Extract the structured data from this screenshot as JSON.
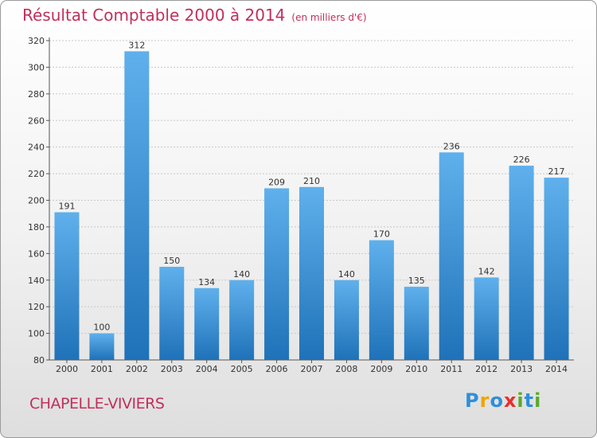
{
  "title": "Résultat Comptable 2000 à 2014",
  "subtitle": "(en milliers d'€)",
  "place": "CHAPELLE-VIVIERS",
  "logo": {
    "letters": [
      "P",
      "r",
      "o",
      "x",
      "i",
      "t",
      "i"
    ],
    "colors": [
      "#2f8fd8",
      "#f0a400",
      "#2f8fd8",
      "#e8302a",
      "#5aaa2a",
      "#2f8fd8",
      "#5aaa2a"
    ]
  },
  "colors": {
    "bar_top": "#5fb0ec",
    "bar_bottom": "#1f72b8",
    "title": "#c0305a",
    "grid": "#c8c8c8"
  },
  "chart_data": {
    "type": "bar",
    "title": "Résultat Comptable 2000 à 2014",
    "ylabel": "(en milliers d'€)",
    "xlabel": "",
    "categories": [
      "2000",
      "2001",
      "2002",
      "2003",
      "2004",
      "2005",
      "2006",
      "2007",
      "2008",
      "2009",
      "2010",
      "2011",
      "2012",
      "2013",
      "2014"
    ],
    "values": [
      191,
      100,
      312,
      150,
      134,
      140,
      209,
      210,
      140,
      170,
      135,
      236,
      142,
      226,
      217
    ],
    "ylim": [
      80,
      320
    ],
    "yticks": [
      80,
      100,
      120,
      140,
      160,
      180,
      200,
      220,
      240,
      260,
      280,
      300,
      320
    ],
    "grid": true,
    "legend": "none"
  }
}
